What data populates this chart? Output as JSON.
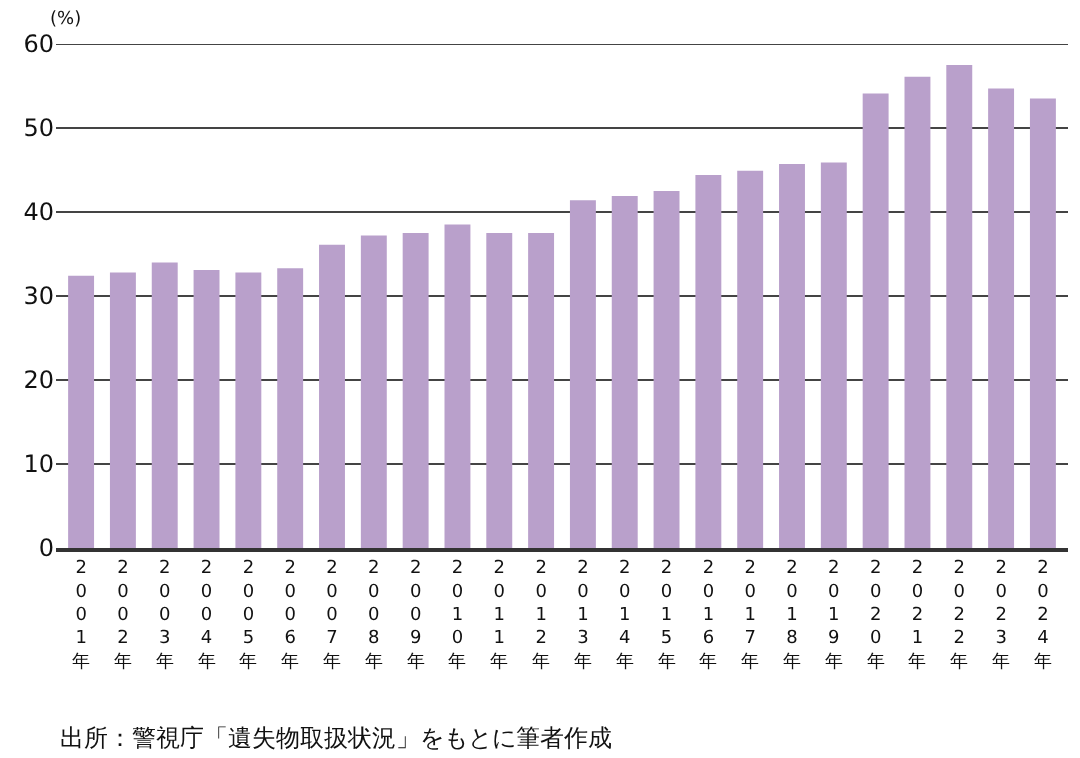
{
  "chart_data": {
    "type": "bar",
    "categories": [
      "2001年",
      "2002年",
      "2003年",
      "2004年",
      "2005年",
      "2006年",
      "2007年",
      "2008年",
      "2009年",
      "2010年",
      "2011年",
      "2012年",
      "2013年",
      "2014年",
      "2015年",
      "2016年",
      "2017年",
      "2018年",
      "2019年",
      "2020年",
      "2021年",
      "2022年",
      "2023年",
      "2024年"
    ],
    "values": [
      32.4,
      32.8,
      34.0,
      33.1,
      32.8,
      33.3,
      36.1,
      37.2,
      37.5,
      38.5,
      37.5,
      37.5,
      41.4,
      41.9,
      42.5,
      44.4,
      44.9,
      45.7,
      45.9,
      54.1,
      56.1,
      57.5,
      54.7,
      53.5
    ],
    "color": "#b9a0cb",
    "ylabel": "(%)",
    "ylim": [
      0,
      60
    ],
    "yticks": [
      0,
      10,
      20,
      30,
      40,
      50,
      60
    ],
    "grid": "y",
    "legend": false,
    "annotations": [
      "出所：警視庁「遺失物取扱状況」をもとに筆者作成"
    ]
  }
}
